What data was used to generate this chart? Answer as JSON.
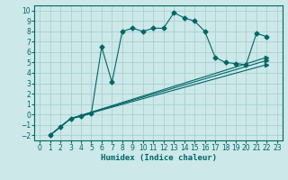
{
  "xlabel": "Humidex (Indice chaleur)",
  "bg_color": "#cce8e8",
  "line_color": "#006666",
  "grid_color": "#aacfcf",
  "xlim": [
    -0.5,
    23.5
  ],
  "ylim": [
    -2.5,
    10.5
  ],
  "xticks": [
    0,
    1,
    2,
    3,
    4,
    5,
    6,
    7,
    8,
    9,
    10,
    11,
    12,
    13,
    14,
    15,
    16,
    17,
    18,
    19,
    20,
    21,
    22,
    23
  ],
  "yticks": [
    -2,
    -1,
    0,
    1,
    2,
    3,
    4,
    5,
    6,
    7,
    8,
    9,
    10
  ],
  "main_x": [
    1,
    2,
    3,
    4,
    5,
    6,
    7,
    8,
    9,
    10,
    11,
    12,
    13,
    14,
    15,
    16,
    17,
    18,
    19,
    20,
    21,
    22
  ],
  "main_y": [
    -2,
    -1.2,
    -0.4,
    -0.2,
    0.1,
    6.5,
    3.1,
    8.0,
    8.3,
    8.0,
    8.3,
    8.3,
    9.8,
    9.3,
    9.0,
    8.0,
    5.5,
    5.0,
    4.9,
    4.8,
    7.8,
    7.5
  ],
  "line1_x": [
    1,
    3,
    22
  ],
  "line1_y": [
    -2,
    -0.4,
    5.5
  ],
  "line2_x": [
    1,
    3,
    22
  ],
  "line2_y": [
    -2,
    -0.4,
    5.2
  ],
  "line3_x": [
    1,
    3,
    22
  ],
  "line3_y": [
    -2,
    -0.4,
    4.8
  ],
  "xlabel_fontsize": 6.5,
  "tick_fontsize": 5.5
}
